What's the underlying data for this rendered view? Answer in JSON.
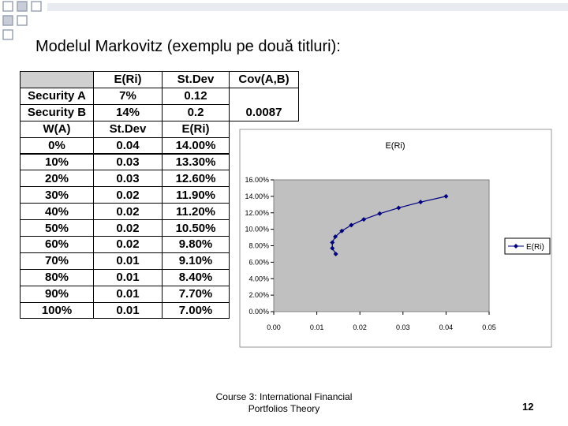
{
  "slide": {
    "title": "Modelul Markovitz (exemplu pe două titluri):",
    "footer": [
      "Course 3: International Financial",
      "Portfolios Theory"
    ],
    "page_number": "12"
  },
  "table": {
    "rows": [
      [
        null,
        "E(Ri)",
        "St.Dev",
        "Cov(A,B)"
      ],
      [
        "Security A",
        "7%",
        "0.12",
        null
      ],
      [
        "Security B",
        "14%",
        "0.2",
        "0.0087"
      ],
      [
        "W(A)",
        "St.Dev",
        "E(Ri)"
      ],
      [
        "0%",
        "0.04",
        "14.00%"
      ],
      [
        "10%",
        "0.03",
        "13.30%"
      ],
      [
        "20%",
        "0.03",
        "12.60%"
      ],
      [
        "30%",
        "0.02",
        "11.90%"
      ],
      [
        "40%",
        "0.02",
        "11.20%"
      ],
      [
        "50%",
        "0.02",
        "10.50%"
      ],
      [
        "60%",
        "0.02",
        "9.80%"
      ],
      [
        "70%",
        "0.01",
        "9.10%"
      ],
      [
        "80%",
        "0.01",
        "8.40%"
      ],
      [
        "90%",
        "0.01",
        "7.70%"
      ],
      [
        "100%",
        "0.01",
        "7.00%"
      ]
    ]
  },
  "chart_data": {
    "type": "line",
    "title": "E(Ri)",
    "series": [
      {
        "name": "E(Ri)",
        "color": "#000080",
        "x": [
          0.04,
          0.0341,
          0.029,
          0.0246,
          0.0209,
          0.018,
          0.0158,
          0.0143,
          0.0136,
          0.0136,
          0.0144
        ],
        "values": [
          14,
          13.3,
          12.6,
          11.9,
          11.2,
          10.5,
          9.8,
          9.1,
          8.4,
          7.7,
          7
        ]
      }
    ],
    "xlim": [
      0,
      0.05
    ],
    "xticks": [
      {
        "value": 0,
        "label": "0.00"
      },
      0.01,
      0.02,
      0.03,
      0.04,
      0.05
    ],
    "ylim": [
      0,
      16
    ],
    "yticks": [
      {
        "value": 0,
        "label": "0.00%"
      },
      {
        "value": 2,
        "label": "2.00%"
      },
      {
        "value": 4,
        "label": "4.00%"
      },
      {
        "value": 6,
        "label": "6.00%"
      },
      {
        "value": 8,
        "label": "8.00%"
      },
      {
        "value": 10,
        "label": "10.00%"
      },
      {
        "value": 12,
        "label": "12.00%"
      },
      {
        "value": 14,
        "label": "14.00%"
      },
      {
        "value": 16,
        "label": "16.00%"
      }
    ],
    "legend": "right",
    "plot_background": "#c0c0c0"
  }
}
